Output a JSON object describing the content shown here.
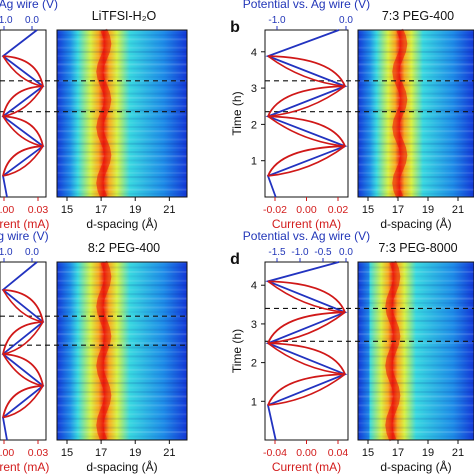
{
  "colors": {
    "potential": "#2233c0",
    "current": "#d01818",
    "axis": "#111111",
    "heatmap_low": "#0b2fd0",
    "heatmap_high": "#f22208"
  },
  "panels": [
    {
      "id": "a",
      "letter": "",
      "title": "LiTFSI-H₂O",
      "top_label": "al vs. Ag wire (V)",
      "top_ticks": [
        "-1.0",
        "0.0"
      ],
      "bottom_label": "urrent (mA)",
      "bottom_ticks": [
        "0.00",
        "0.03"
      ],
      "heat_ticks": [
        "15",
        "17",
        "19",
        "21"
      ],
      "heat_xlabel": "d-spacing (Å)",
      "time_label": "",
      "time_ticks": [],
      "dashed_at": [
        3.2,
        2.35
      ]
    },
    {
      "id": "b",
      "letter": "b",
      "title": "7:3 PEG-400",
      "top_label": "Potential vs. Ag wire (V)",
      "top_ticks": [
        "-1.0",
        "0.0"
      ],
      "bottom_label": "Current (mA)",
      "bottom_ticks": [
        "-0.02",
        "0.00",
        "0.02"
      ],
      "heat_ticks": [
        "15",
        "17",
        "19",
        "21"
      ],
      "heat_xlabel": "d-spacing (Å)",
      "time_label": "Time (h)",
      "time_ticks": [
        "1",
        "2",
        "3",
        "4"
      ],
      "dashed_at": [
        3.2,
        2.35
      ]
    },
    {
      "id": "c",
      "letter": "",
      "title": "8:2 PEG-400",
      "top_label": "s. Ag wire (V)",
      "top_ticks": [
        "-1.0",
        "0.0"
      ],
      "bottom_label": "urrent (mA)",
      "bottom_ticks": [
        "0.00",
        "0.03"
      ],
      "heat_ticks": [
        "15",
        "17",
        "19",
        "21"
      ],
      "heat_xlabel": "d-spacing (Å)",
      "time_label": "",
      "time_ticks": [],
      "dashed_at": [
        3.2,
        2.45
      ]
    },
    {
      "id": "d",
      "letter": "d",
      "title": "7:3 PEG-8000",
      "top_label": "Potential vs. Ag wire (V)",
      "top_ticks": [
        "-1.5",
        "-1.0",
        "-0.5",
        "0.0"
      ],
      "bottom_label": "Current (mA)",
      "bottom_ticks": [
        "-0.04",
        "0.00",
        "0.04"
      ],
      "heat_ticks": [
        "15",
        "17",
        "19",
        "21"
      ],
      "heat_xlabel": "d-spacing (Å)",
      "time_label": "Time (h)",
      "time_ticks": [
        "1",
        "2",
        "3",
        "4"
      ],
      "dashed_at": [
        3.4,
        2.55
      ]
    }
  ],
  "chart_data": [
    {
      "type": "line",
      "panel": "b",
      "title": "7:3 PEG-400",
      "xlabel": "Potential vs. Ag wire (V)",
      "xlim": [
        -1.3,
        0.15
      ],
      "ylabel": "Time (h)",
      "ylim": [
        0,
        4.6
      ],
      "series": [
        {
          "name": "Potential vs. Ag wire (V)",
          "x": [
            -1.2,
            0.0,
            -1.2,
            0.0,
            -1.2,
            0.0,
            -1.2,
            0.0
          ],
          "y": [
            0.58,
            1.4,
            2.22,
            3.05,
            3.88,
            4.6,
            4.6,
            4.6
          ]
        }
      ]
    },
    {
      "type": "line",
      "panel": "b",
      "xlabel": "Current (mA)",
      "xlim": [
        -0.025,
        0.025
      ],
      "series": [
        {
          "name": "Current (mA)",
          "x": [
            -0.022,
            0.02,
            -0.022,
            0.02,
            -0.022,
            0.02
          ],
          "y": [
            0.58,
            1.4,
            2.22,
            3.05,
            3.88,
            4.55
          ]
        }
      ]
    },
    {
      "type": "heatmap",
      "panel": "b",
      "xlabel": "d-spacing (Å)",
      "xlim": [
        14,
        22
      ],
      "ylabel": "Time (h)",
      "ylim": [
        0,
        4.6
      ],
      "peak_d_spacing": 16.8,
      "dashed_lines_time": [
        3.2,
        2.35
      ]
    },
    {
      "type": "line",
      "panel": "d",
      "title": "7:3 PEG-8000",
      "xlabel": "Potential vs. Ag wire (V)",
      "xlim": [
        -1.6,
        0.05
      ],
      "ylabel": "Time (h)",
      "ylim": [
        0,
        4.6
      ],
      "series": [
        {
          "name": "Potential vs. Ag wire (V)",
          "x": [
            -1.5,
            0.0,
            -1.5,
            0.0,
            -1.5,
            0.0
          ],
          "y": [
            0.9,
            1.7,
            2.5,
            3.3,
            4.1,
            4.6
          ]
        }
      ]
    },
    {
      "type": "line",
      "panel": "d",
      "xlabel": "Current (mA)",
      "xlim": [
        -0.05,
        0.05
      ],
      "series": [
        {
          "name": "Current (mA)",
          "x": [
            -0.04,
            0.04,
            -0.04,
            0.04,
            -0.04,
            0.04
          ],
          "y": [
            0.9,
            1.7,
            2.5,
            3.3,
            4.1,
            4.6
          ]
        }
      ]
    },
    {
      "type": "heatmap",
      "panel": "d",
      "xlabel": "d-spacing (Å)",
      "xlim": [
        14,
        22
      ],
      "ylabel": "Time (h)",
      "ylim": [
        0,
        4.6
      ],
      "peak_d_spacing": 16.5,
      "dashed_lines_time": [
        3.4,
        2.55
      ]
    }
  ]
}
